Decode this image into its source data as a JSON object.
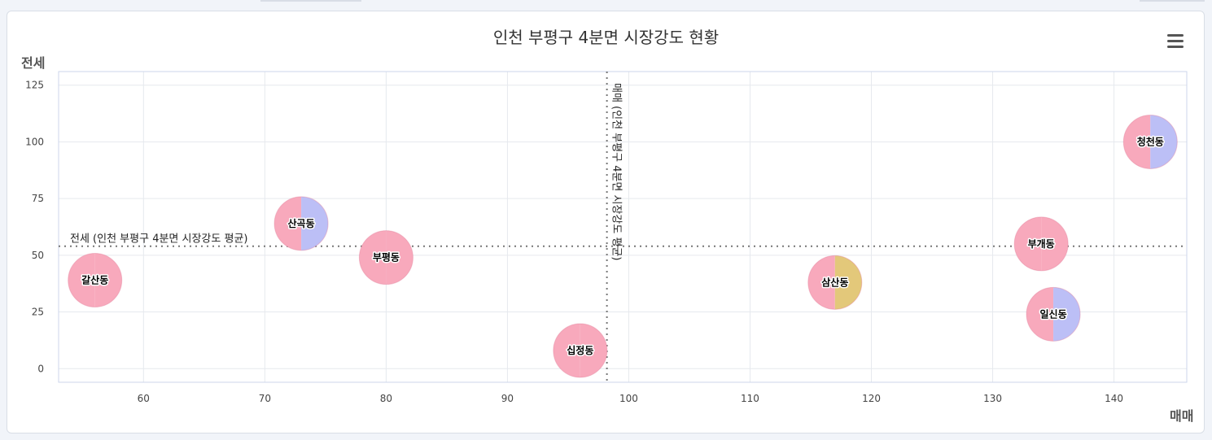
{
  "chart_data": {
    "type": "bubble",
    "title": "인천 부평구 4분면 시장강도 현황",
    "xlabel": "매매",
    "ylabel": "전세",
    "xlim": [
      53,
      146
    ],
    "ylim": [
      -6,
      131
    ],
    "xticks": [
      60,
      70,
      80,
      90,
      100,
      110,
      120,
      130,
      140
    ],
    "yticks": [
      0,
      25,
      50,
      75,
      100,
      125
    ],
    "grid": true,
    "plot_lines": {
      "x": {
        "value": 98.2,
        "label": "매매 (인천 부평구 4분면 시장강도 평균)"
      },
      "y": {
        "value": 54,
        "label": "전세 (인천 부평구 4분면 시장강도 평균)"
      }
    },
    "points": [
      {
        "name": "갈산동",
        "x": 56,
        "y": 39,
        "colors": [
          "#f8a9bc",
          "#f8a9bc"
        ]
      },
      {
        "name": "산곡동",
        "x": 73,
        "y": 64,
        "colors": [
          "#f8a9bc",
          "#bcbff6"
        ]
      },
      {
        "name": "부평동",
        "x": 80,
        "y": 49,
        "colors": [
          "#f8a9bc",
          "#f8a9bc"
        ]
      },
      {
        "name": "십정동",
        "x": 96,
        "y": 8,
        "colors": [
          "#f8a9bc",
          "#f8a9bc"
        ]
      },
      {
        "name": "삼산동",
        "x": 117,
        "y": 38,
        "colors": [
          "#f8a9bc",
          "#e3c87a"
        ]
      },
      {
        "name": "부개동",
        "x": 134,
        "y": 55,
        "colors": [
          "#f8a9bc",
          "#f8a9bc"
        ]
      },
      {
        "name": "일신동",
        "x": 135,
        "y": 24,
        "colors": [
          "#f8a9bc",
          "#bcbff6"
        ]
      },
      {
        "name": "청천동",
        "x": 143,
        "y": 100,
        "colors": [
          "#f8a9bc",
          "#bcbff6"
        ]
      }
    ]
  },
  "menu_icon": "hamburger-menu-icon"
}
